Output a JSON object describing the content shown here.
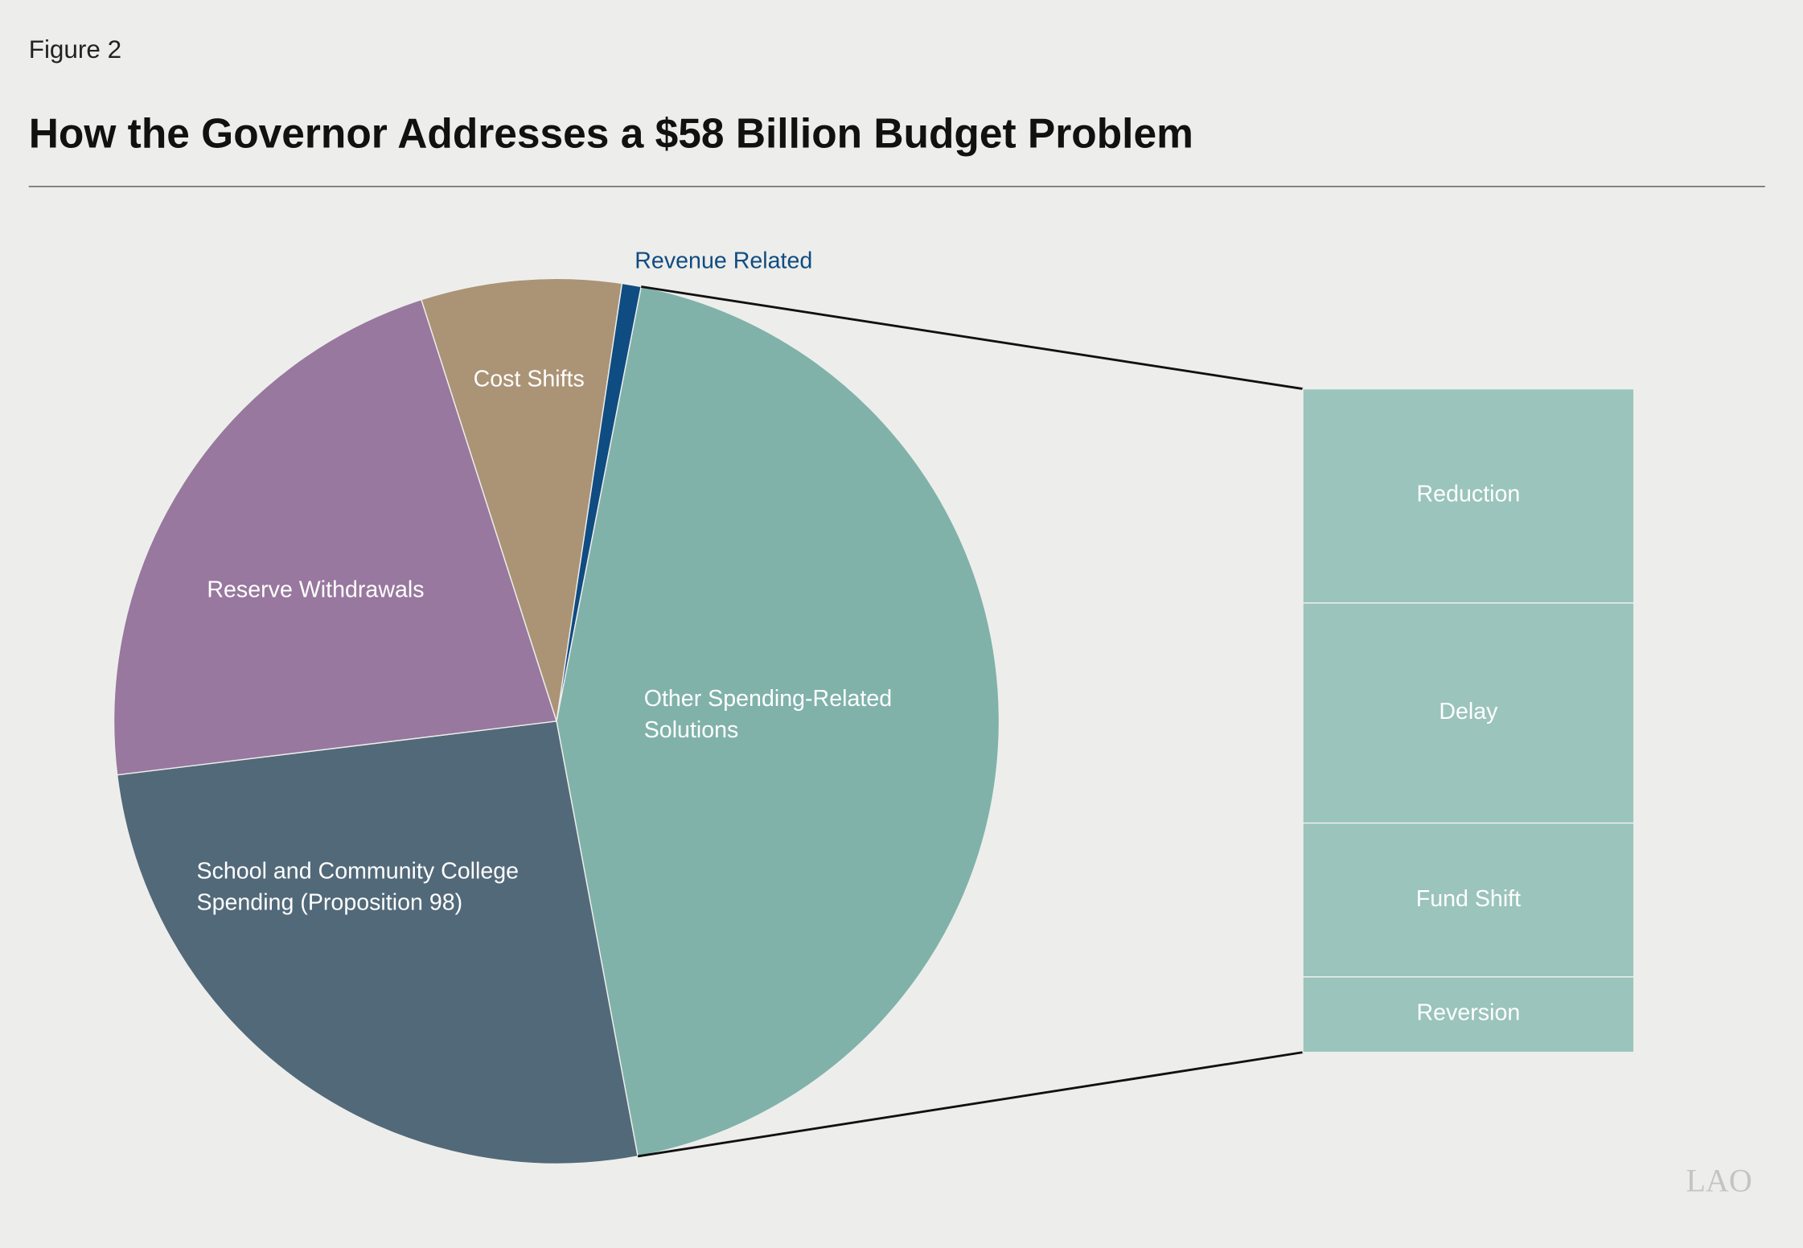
{
  "chart_data": {
    "type": "pie",
    "figure_label": "Figure 2",
    "title": "How the Governor Addresses a $58 Billion Budget Problem",
    "categories": [
      "Revenue Related",
      "Other Spending-Related Solutions",
      "School and Community College Spending (Proposition 98)",
      "Reserve Withdrawals",
      "Cost Shifts"
    ],
    "values": [
      0.7,
      44,
      26,
      22,
      7.3
    ],
    "colors": [
      "#0f4c81",
      "#80b2aa",
      "#526979",
      "#98789e",
      "#ab9376"
    ],
    "breakdown": {
      "type": "bar",
      "categories": [
        "Reduction",
        "Delay",
        "Fund Shift",
        "Reversion"
      ],
      "values": [
        14.2,
        14.6,
        10.2,
        5.0
      ],
      "color": "#9ac4bc"
    },
    "logo": "LAO"
  }
}
